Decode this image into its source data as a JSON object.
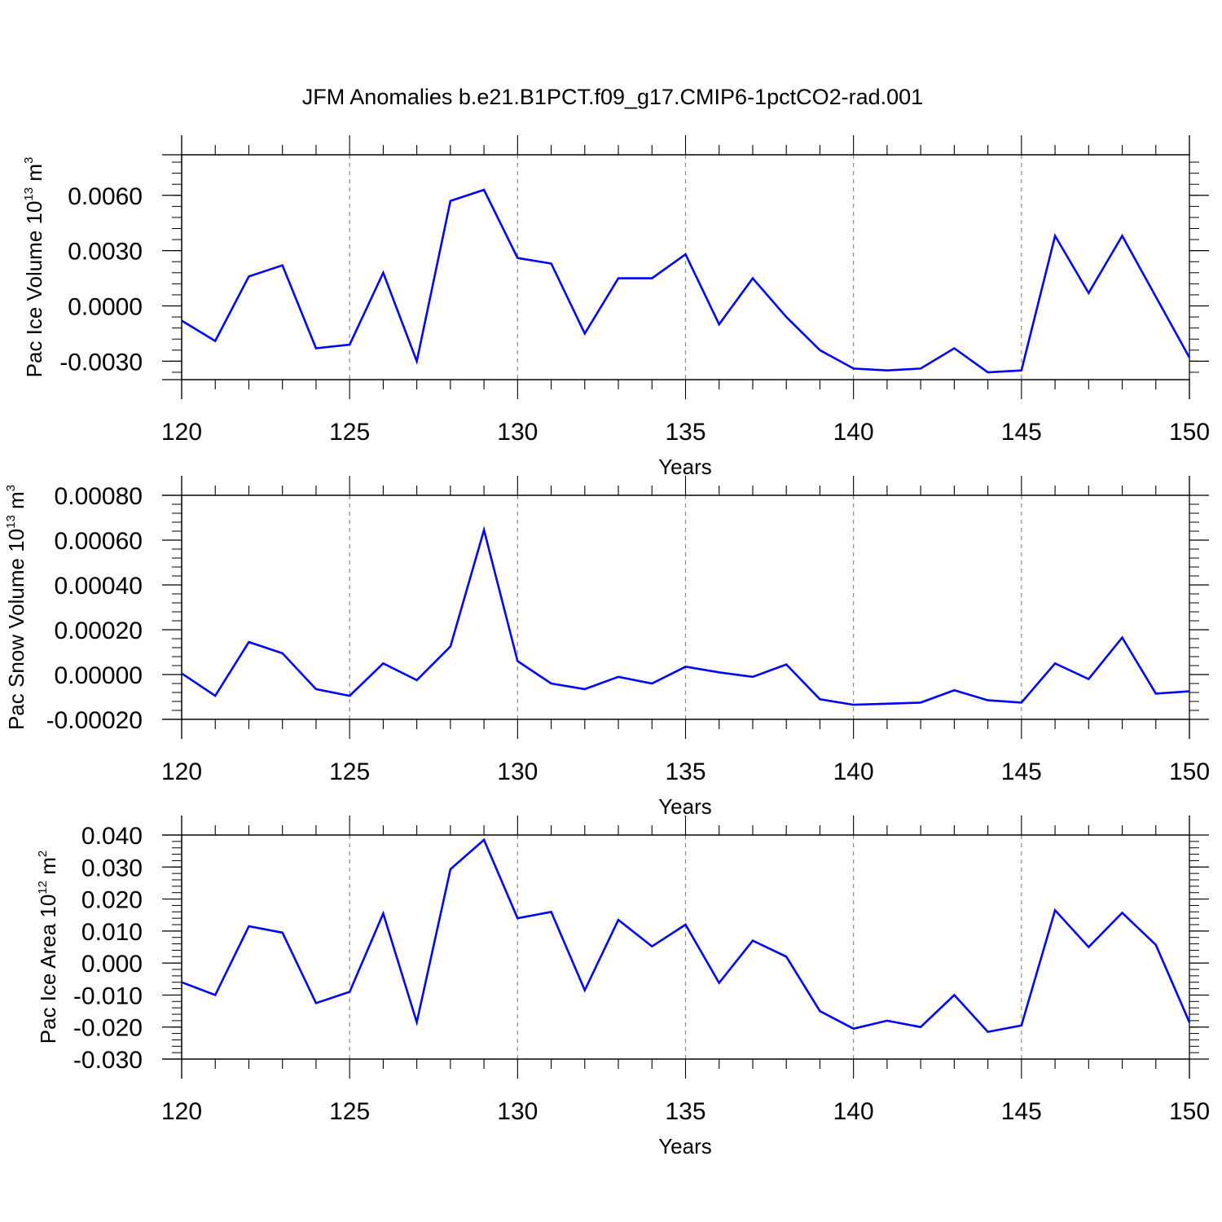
{
  "figure": {
    "title": "JFM Anomalies b.e21.B1PCT.f09_g17.CMIP6-1pctCO2-rad.001",
    "line_color": "#0000ff",
    "grid_color": "#888888"
  },
  "chart_data": [
    {
      "type": "line",
      "id": "ice-volume",
      "ylabel": {
        "text": "Pac Ice Volume 10",
        "exp": "13",
        "unit": " m",
        "unit_exp": "3"
      },
      "xlabel": "Years",
      "xlim": [
        120,
        150
      ],
      "ylim": [
        -0.004,
        0.0082
      ],
      "x_ticks": [
        120,
        125,
        130,
        135,
        140,
        145,
        150
      ],
      "x_tick_labels": [
        "120",
        "125",
        "130",
        "135",
        "140",
        "145",
        "150"
      ],
      "y_ticks": [
        -0.003,
        0.0,
        0.003,
        0.006
      ],
      "y_tick_labels": [
        "-0.0030",
        "0.0000",
        "0.0030",
        "0.0060"
      ],
      "y_minor_step": 0.0006,
      "grid": "vertical-dashed",
      "series": [
        {
          "x": [
            120,
            121,
            122,
            123,
            124,
            125,
            126,
            127,
            128,
            129,
            130,
            131,
            132,
            133,
            134,
            135,
            136,
            137,
            138,
            139,
            140,
            141,
            142,
            143,
            144,
            145,
            146,
            147,
            148,
            149,
            150
          ],
          "values": [
            -0.0008,
            -0.0019,
            0.0016,
            0.0022,
            -0.0023,
            -0.0021,
            0.0018,
            -0.003,
            0.0057,
            0.0063,
            0.0026,
            0.0023,
            -0.0015,
            0.0015,
            0.0015,
            0.0028,
            -0.001,
            0.0015,
            -0.0006,
            -0.0024,
            -0.0034,
            -0.0035,
            -0.0034,
            -0.0023,
            -0.0036,
            -0.0035,
            0.0038,
            0.0007,
            0.0038,
            0.0005,
            -0.0028
          ]
        }
      ]
    },
    {
      "type": "line",
      "id": "snow-volume",
      "ylabel": {
        "text": "Pac Snow Volume 10",
        "exp": "13",
        "unit": " m",
        "unit_exp": "3"
      },
      "xlabel": "Years",
      "xlim": [
        120,
        150
      ],
      "ylim": [
        -0.0002,
        0.0008
      ],
      "x_ticks": [
        120,
        125,
        130,
        135,
        140,
        145,
        150
      ],
      "x_tick_labels": [
        "120",
        "125",
        "130",
        "135",
        "140",
        "145",
        "150"
      ],
      "y_ticks": [
        -0.0002,
        0.0,
        0.0002,
        0.0004,
        0.0006,
        0.0008
      ],
      "y_tick_labels": [
        "-0.00020",
        "0.00000",
        "0.00020",
        "0.00040",
        "0.00060",
        "0.00080"
      ],
      "y_minor_step": 4e-05,
      "grid": "vertical-dashed",
      "series": [
        {
          "x": [
            120,
            121,
            122,
            123,
            124,
            125,
            126,
            127,
            128,
            129,
            130,
            131,
            132,
            133,
            134,
            135,
            136,
            137,
            138,
            139,
            140,
            141,
            142,
            143,
            144,
            145,
            146,
            147,
            148,
            149,
            150
          ],
          "values": [
            5e-06,
            -9.5e-05,
            0.000145,
            9.5e-05,
            -6.5e-05,
            -9.5e-05,
            5e-05,
            -2.5e-05,
            0.000125,
            0.000645,
            6e-05,
            -4e-05,
            -6.5e-05,
            -1e-05,
            -4e-05,
            3.5e-05,
            1e-05,
            -1e-05,
            4.5e-05,
            -0.00011,
            -0.000135,
            -0.00013,
            -0.000125,
            -7e-05,
            -0.000115,
            -0.000125,
            5e-05,
            -2e-05,
            0.000165,
            -8.5e-05,
            -7.5e-05
          ]
        }
      ]
    },
    {
      "type": "line",
      "id": "ice-area",
      "ylabel": {
        "text": "Pac Ice Area 10",
        "exp": "12",
        "unit": " m",
        "unit_exp": "2"
      },
      "xlabel": "Years",
      "xlim": [
        120,
        150
      ],
      "ylim": [
        -0.03,
        0.04
      ],
      "x_ticks": [
        120,
        125,
        130,
        135,
        140,
        145,
        150
      ],
      "x_tick_labels": [
        "120",
        "125",
        "130",
        "135",
        "140",
        "145",
        "150"
      ],
      "y_ticks": [
        -0.03,
        -0.02,
        -0.01,
        0.0,
        0.01,
        0.02,
        0.03,
        0.04
      ],
      "y_tick_labels": [
        "-0.030",
        "-0.020",
        "-0.010",
        "0.000",
        "0.010",
        "0.020",
        "0.030",
        "0.040"
      ],
      "y_minor_step": 0.002,
      "grid": "vertical-dashed",
      "series": [
        {
          "x": [
            120,
            121,
            122,
            123,
            124,
            125,
            126,
            127,
            128,
            129,
            130,
            131,
            132,
            133,
            134,
            135,
            136,
            137,
            138,
            139,
            140,
            141,
            142,
            143,
            144,
            145,
            146,
            147,
            148,
            149,
            150
          ],
          "values": [
            -0.006,
            -0.01,
            0.0115,
            0.0095,
            -0.0125,
            -0.009,
            0.0155,
            -0.0185,
            0.0293,
            0.0385,
            0.014,
            0.016,
            -0.0085,
            0.0135,
            0.0052,
            0.012,
            -0.0062,
            0.007,
            0.002,
            -0.015,
            -0.0205,
            -0.018,
            -0.02,
            -0.01,
            -0.0215,
            -0.0195,
            0.0165,
            0.005,
            0.0157,
            0.0057,
            -0.0185
          ]
        }
      ]
    }
  ]
}
